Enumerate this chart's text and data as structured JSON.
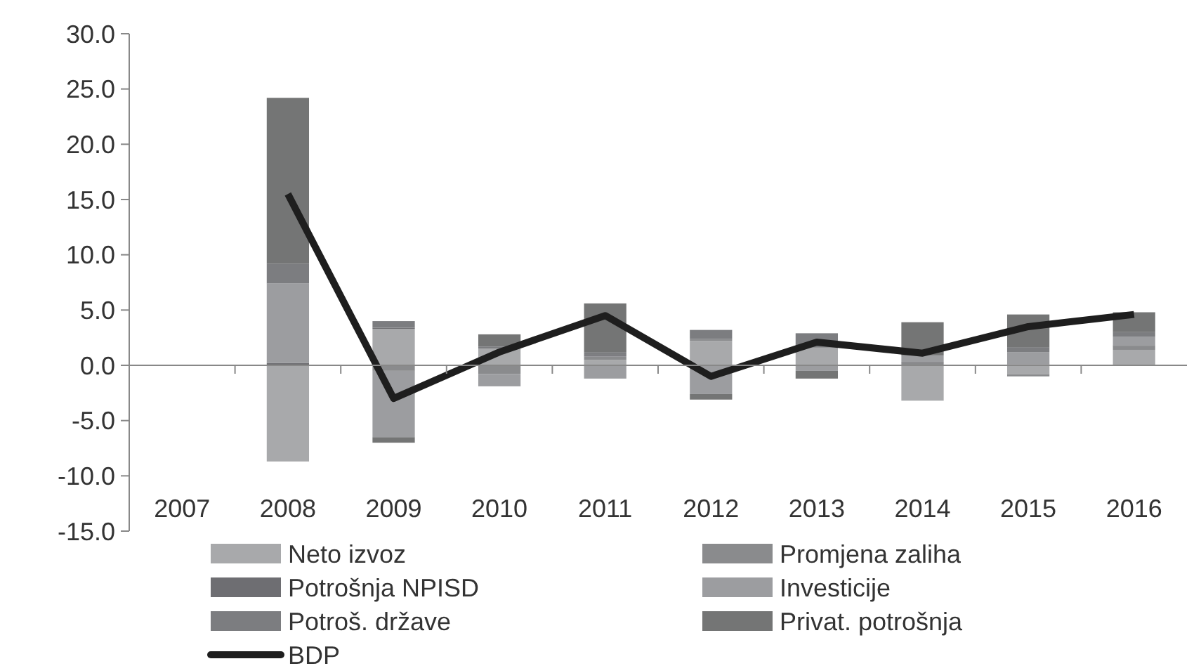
{
  "chart_data": {
    "type": "bar",
    "stacked": true,
    "categories": [
      "2007",
      "2008",
      "2009",
      "2010",
      "2011",
      "2012",
      "2013",
      "2014",
      "2015",
      "2016"
    ],
    "series": [
      {
        "name": "Neto izvoz",
        "color": "#a8a9ab",
        "values": [
          null,
          -8.7,
          3.3,
          1.5,
          0.5,
          2.2,
          1.6,
          -3.2,
          -0.8,
          1.4
        ]
      },
      {
        "name": "Promjena zaliha",
        "color": "#8a8b8d",
        "values": [
          null,
          0,
          -0.5,
          -0.8,
          0.3,
          0.2,
          null,
          0.2,
          -0.2,
          0.3
        ]
      },
      {
        "name": "Potrošnja NPISD",
        "color": "#6e6e72",
        "values": [
          null,
          0.2,
          0.1,
          null,
          0.1,
          0,
          null,
          0.1,
          0.1,
          0.1
        ]
      },
      {
        "name": "Investicije",
        "color": "#9c9da0",
        "values": [
          null,
          7.2,
          -6.0,
          -1.1,
          -1.2,
          -2.6,
          -0.5,
          0.6,
          1.1,
          0.8
        ]
      },
      {
        "name": "Potroš. države",
        "color": "#7c7d80",
        "values": [
          null,
          1.8,
          0.6,
          0.2,
          0.3,
          0.8,
          1.3,
          null,
          0.4,
          0.4
        ]
      },
      {
        "name": "Privat. potrošnja",
        "color": "#747575",
        "values": [
          null,
          15.0,
          -0.5,
          1.1,
          4.4,
          -0.5,
          -0.7,
          3.0,
          3.0,
          1.8
        ]
      },
      {
        "name": "BDP",
        "type": "line",
        "color": "#1e1e1e",
        "values": [
          null,
          15.5,
          -3.0,
          1.2,
          4.5,
          -1.0,
          2.1,
          1.1,
          3.5,
          4.6
        ]
      }
    ],
    "ylim": [
      -15,
      30
    ],
    "yticks": [
      {
        "value": -15,
        "label": "-15.0"
      },
      {
        "value": -10,
        "label": "-10.0"
      },
      {
        "value": -5,
        "label": "-5.0"
      },
      {
        "value": 0,
        "label": "0.0"
      },
      {
        "value": 5,
        "label": "5.0"
      },
      {
        "value": 10,
        "label": "10.0"
      },
      {
        "value": 15,
        "label": "15.0"
      },
      {
        "value": 20,
        "label": "20.0"
      },
      {
        "value": 25,
        "label": "25.0"
      },
      {
        "value": 30,
        "label": "30.0"
      }
    ],
    "legend": "bottom",
    "marker": "none"
  }
}
